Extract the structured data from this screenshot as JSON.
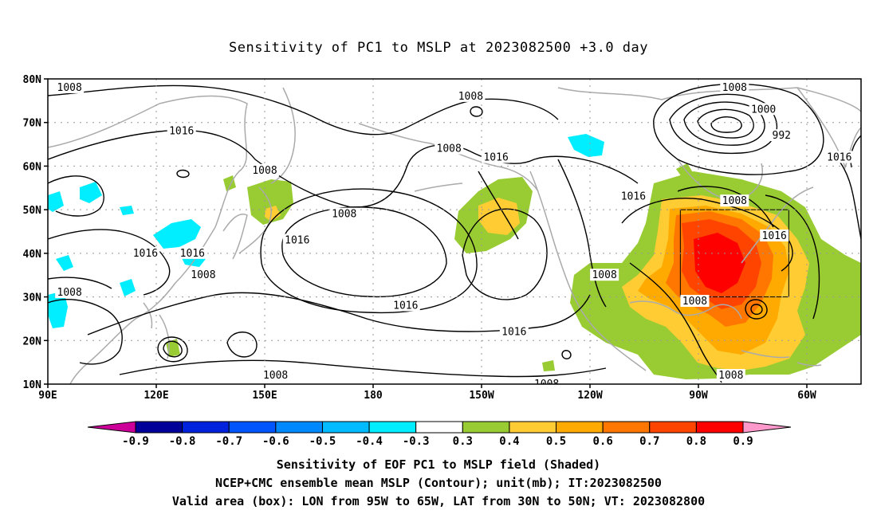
{
  "title": "Sensitivity of PC1 to MSLP at 2023082500 +3.0 day",
  "map": {
    "lat_ticks": [
      "80N",
      "70N",
      "60N",
      "50N",
      "40N",
      "30N",
      "20N",
      "10N"
    ],
    "lon_ticks": [
      "90E",
      "120E",
      "150E",
      "180",
      "150W",
      "120W",
      "90W",
      "60W"
    ],
    "extent": {
      "lon_min": 90,
      "lon_max": 315,
      "lat_min": 10,
      "lat_max": 80
    },
    "valid_box": {
      "lon_west": -95,
      "lon_east": -65,
      "lat_south": 30,
      "lat_north": 50
    },
    "contour_labels": [
      {
        "text": "1008",
        "lon": 96,
        "lat": 78
      },
      {
        "text": "1016",
        "lon": 127,
        "lat": 68
      },
      {
        "text": "1008",
        "lon": 150,
        "lat": 59
      },
      {
        "text": "1016",
        "lon": 117,
        "lat": 40
      },
      {
        "text": "1016",
        "lon": 130,
        "lat": 40
      },
      {
        "text": "1008",
        "lon": 133,
        "lat": 35
      },
      {
        "text": "1008",
        "lon": 96,
        "lat": 31
      },
      {
        "text": "1008",
        "lon": 172,
        "lat": 49
      },
      {
        "text": "1016",
        "lon": 159,
        "lat": 43
      },
      {
        "text": "1008",
        "lon": 207,
        "lat": 76
      },
      {
        "text": "1008",
        "lon": 201,
        "lat": 64
      },
      {
        "text": "1016",
        "lon": 214,
        "lat": 62
      },
      {
        "text": "1016",
        "lon": 189,
        "lat": 28
      },
      {
        "text": "1016",
        "lon": 219,
        "lat": 22
      },
      {
        "text": "1008",
        "lon": 228,
        "lat": 10
      },
      {
        "text": "1008",
        "lon": 153,
        "lat": 12
      },
      {
        "text": "1008",
        "lon": 244,
        "lat": 35
      },
      {
        "text": "1016",
        "lon": 252,
        "lat": 53
      },
      {
        "text": "1008",
        "lon": 269,
        "lat": 29
      },
      {
        "text": "1008",
        "lon": 280,
        "lat": 52
      },
      {
        "text": "1016",
        "lon": 291,
        "lat": 44
      },
      {
        "text": "1008",
        "lon": 279,
        "lat": 12
      },
      {
        "text": "1008",
        "lon": 280,
        "lat": 78
      },
      {
        "text": "1000",
        "lon": 288,
        "lat": 73
      },
      {
        "text": "992",
        "lon": 293,
        "lat": 67
      },
      {
        "text": "1016",
        "lon": 309,
        "lat": 62
      }
    ]
  },
  "colorbar": {
    "labels": [
      "-0.9",
      "-0.8",
      "-0.7",
      "-0.6",
      "-0.5",
      "-0.4",
      "-0.3",
      "0.3",
      "0.4",
      "0.5",
      "0.6",
      "0.7",
      "0.8",
      "0.9"
    ],
    "colors": [
      "#000099",
      "#0022dd",
      "#0055ff",
      "#0088ff",
      "#00bbff",
      "#00eeff",
      "#ffffff",
      "#99cc33",
      "#ffcc33",
      "#ffaa00",
      "#ff7700",
      "#ff4400",
      "#ff0000"
    ],
    "low_end_color": "#cc0099",
    "high_end_color": "#ff99cc"
  },
  "captions": {
    "line1": "Sensitivity of EOF PC1 to MSLP field (Shaded)",
    "line2": "NCEP+CMC ensemble mean MSLP (Contour); unit(mb); IT:2023082500",
    "line3": "Valid area (box): LON from 95W to 65W, LAT from 30N to 50N; VT: 2023082800"
  }
}
